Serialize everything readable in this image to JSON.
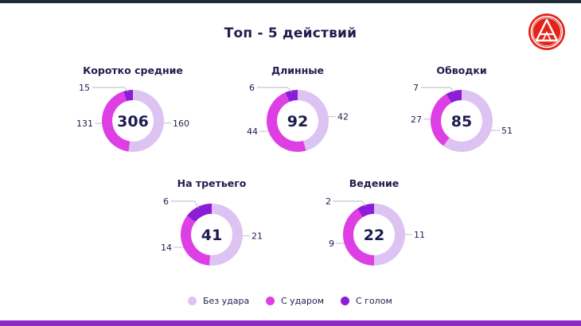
{
  "title": "Топ - 5 действий",
  "legend": [
    {
      "label": "Без удара",
      "color": "#dcc3f2"
    },
    {
      "label": "С ударом",
      "color": "#dd3fe5"
    },
    {
      "label": "С голом",
      "color": "#8d1cd6"
    }
  ],
  "colors": {
    "accent": "#8e2bc4",
    "logo": "#e2231a",
    "text": "#1f1d4f"
  },
  "chart_data": [
    {
      "type": "pie",
      "title": "Коротко средние",
      "total": "306",
      "categories": [
        "Без удара",
        "С ударом",
        "С голом"
      ],
      "values": [
        160,
        131,
        15
      ]
    },
    {
      "type": "pie",
      "title": "Длинные",
      "total": "92",
      "categories": [
        "Без удара",
        "С ударом",
        "С голом"
      ],
      "values": [
        42,
        44,
        6
      ]
    },
    {
      "type": "pie",
      "title": "Обводки",
      "total": "85",
      "categories": [
        "Без удара",
        "С ударом",
        "С голом"
      ],
      "values": [
        51,
        27,
        7
      ]
    },
    {
      "type": "pie",
      "title": "На третьего",
      "total": "41",
      "categories": [
        "Без удара",
        "С ударом",
        "С голом"
      ],
      "values": [
        21,
        14,
        6
      ]
    },
    {
      "type": "pie",
      "title": "Ведение",
      "total": "22",
      "categories": [
        "Без удара",
        "С ударом",
        "С голом"
      ],
      "values": [
        11,
        9,
        2
      ]
    }
  ]
}
